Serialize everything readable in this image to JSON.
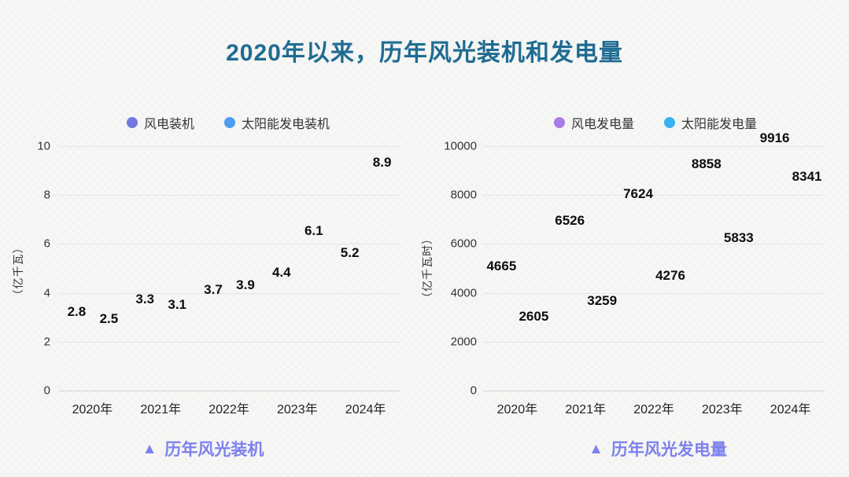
{
  "title": "2020年以来，历年风光装机和发电量",
  "colors": {
    "title": "#1f6c93",
    "caption": "#7c81ee",
    "grid": "#e5e5e5",
    "axis_line": "#d4d4d4"
  },
  "chart_data": [
    {
      "type": "scatter",
      "caption_icon": "▲",
      "caption": "历年风光装机",
      "ylabel": "（亿千瓦）",
      "categories": [
        "2020年",
        "2021年",
        "2022年",
        "2023年",
        "2024年"
      ],
      "yticks": [
        0,
        2,
        4,
        6,
        8,
        10
      ],
      "ylim": [
        0,
        10
      ],
      "grid": true,
      "legend_position": "top",
      "series": [
        {
          "name": "风电装机",
          "color": "#7477de",
          "values": [
            2.8,
            3.3,
            3.7,
            4.4,
            5.2
          ]
        },
        {
          "name": "太阳能发电装机",
          "color": "#4d9ef0",
          "values": [
            2.5,
            3.1,
            3.9,
            6.1,
            8.9
          ]
        }
      ]
    },
    {
      "type": "scatter",
      "caption_icon": "▲",
      "caption": "历年风光发电量",
      "ylabel": "（亿千瓦时）",
      "categories": [
        "2020年",
        "2021年",
        "2022年",
        "2023年",
        "2024年"
      ],
      "yticks": [
        0,
        2000,
        4000,
        6000,
        8000,
        10000
      ],
      "ylim": [
        0,
        10000
      ],
      "grid": true,
      "legend_position": "top",
      "series": [
        {
          "name": "风电发电量",
          "color": "#a77de9",
          "values": [
            4665,
            6526,
            7624,
            8858,
            9916
          ]
        },
        {
          "name": "太阳能发电量",
          "color": "#38b1f2",
          "values": [
            2605,
            3259,
            4276,
            5833,
            8341
          ]
        }
      ]
    }
  ]
}
